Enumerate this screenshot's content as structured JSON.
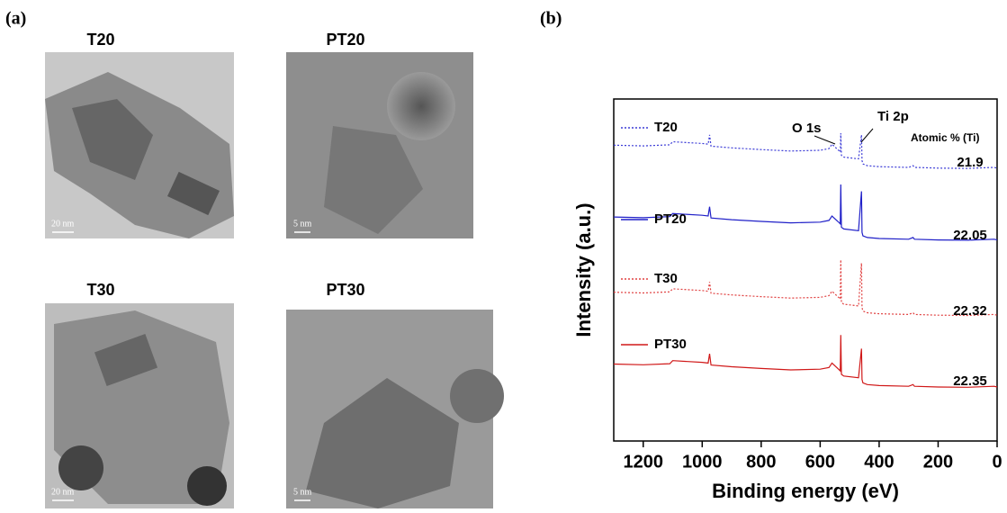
{
  "panel_a": {
    "label": "(a)",
    "images": [
      {
        "title": "T20",
        "scale_bar": "20 nm"
      },
      {
        "title": "PT20",
        "scale_bar": "5 nm"
      },
      {
        "title": "T30",
        "scale_bar": "20 nm"
      },
      {
        "title": "PT30",
        "scale_bar": "5 nm"
      }
    ]
  },
  "chart_data": {
    "type": "line",
    "panel_label": "(b)",
    "xlabel": "Binding energy (eV)",
    "ylabel": "Intensity (a.u.)",
    "xlim": [
      1300,
      0
    ],
    "xticks": [
      1200,
      1000,
      800,
      600,
      400,
      200,
      0
    ],
    "ylim": [
      0,
      100
    ],
    "grid": false,
    "annotations": {
      "o1s": "O 1s",
      "ti2p": "Ti 2p",
      "atomic_header": "Atomic % (Ti)"
    },
    "x": [
      1300,
      1200,
      1110,
      1100,
      1000,
      980,
      975,
      970,
      900,
      800,
      700,
      600,
      570,
      560,
      540,
      532,
      530,
      528,
      520,
      470,
      460,
      458,
      455,
      440,
      400,
      300,
      285,
      280,
      200,
      100,
      10,
      0
    ],
    "series": [
      {
        "name": "T20",
        "color": "#3b3bd6",
        "dash": "dotted",
        "atomic_percent": 21.9,
        "values": [
          86.5,
          86.3,
          86.6,
          87.5,
          87,
          86.8,
          89.5,
          86.2,
          85.7,
          85.2,
          84.8,
          85,
          85.5,
          86.8,
          85.2,
          84.5,
          90,
          83.5,
          83,
          82.5,
          89.5,
          82,
          81,
          80.5,
          80.2,
          80,
          80.5,
          80,
          79.8,
          79.7,
          80,
          79.8
        ]
      },
      {
        "name": "PT20",
        "color": "#2020c8",
        "dash": "solid",
        "atomic_percent": 22.05,
        "values": [
          65.5,
          65.3,
          65.6,
          66.5,
          66,
          65.8,
          68.5,
          65.2,
          64.7,
          64.2,
          63.8,
          64,
          64.5,
          65.8,
          64.2,
          63.5,
          75,
          62.5,
          62,
          61.5,
          73,
          61,
          60,
          59.5,
          59.2,
          59,
          59.5,
          59,
          58.8,
          58.7,
          59,
          58.8
        ]
      },
      {
        "name": "T30",
        "color": "#e04040",
        "dash": "dotted",
        "atomic_percent": 22.32,
        "values": [
          43.5,
          43.3,
          43.6,
          44.5,
          44,
          43.8,
          46.5,
          43.2,
          42.7,
          42.2,
          41.8,
          42,
          42.5,
          43.8,
          42.2,
          41.5,
          53,
          40.5,
          40,
          39.5,
          52,
          39,
          38,
          37.5,
          37.2,
          37,
          37.5,
          37,
          36.8,
          36.7,
          37,
          36.8
        ]
      },
      {
        "name": "PT30",
        "color": "#d01818",
        "dash": "solid",
        "atomic_percent": 22.35,
        "values": [
          22.5,
          22.3,
          22.6,
          23.5,
          23,
          22.8,
          25.5,
          22.2,
          21.7,
          21.2,
          20.8,
          21,
          21.5,
          22.8,
          21.2,
          20.5,
          31,
          19.5,
          19,
          18.5,
          27,
          18,
          17,
          16.5,
          16.2,
          16,
          16.5,
          16,
          15.8,
          15.7,
          16,
          15.8
        ]
      }
    ]
  }
}
